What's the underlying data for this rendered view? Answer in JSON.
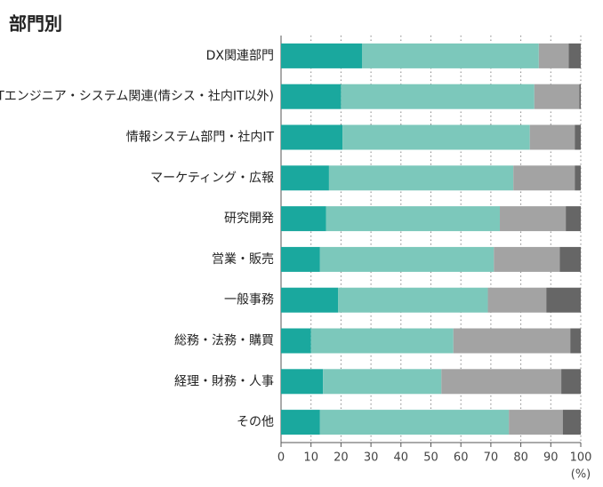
{
  "chart_data": {
    "type": "stacked-barh",
    "title": "部門別",
    "categories": [
      "DX関連部門",
      "ITエンジニア・システム関連(情シス・社内IT以外)",
      "情報システム部門・社内IT",
      "マーケティング・広報",
      "研究開発",
      "営業・販売",
      "一般事務",
      "総務・法務・購買",
      "経理・財務・人事",
      "その他"
    ],
    "series": [
      {
        "color": "#1aa89e",
        "values": [
          27,
          20,
          20.5,
          16,
          15,
          13,
          19,
          10,
          14,
          13
        ]
      },
      {
        "color": "#7cc8bb",
        "values": [
          59,
          64.5,
          62.5,
          61.5,
          58,
          58,
          50,
          47.5,
          39.5,
          63
        ]
      },
      {
        "color": "#a3a3a3",
        "values": [
          10,
          15,
          15,
          20.5,
          22,
          22,
          19.5,
          39,
          40,
          18
        ]
      },
      {
        "color": "#666666",
        "values": [
          4,
          0.5,
          2,
          2,
          5,
          7,
          11.5,
          3.5,
          6.5,
          6
        ]
      }
    ],
    "xlim": [
      0,
      100
    ],
    "xticks": [
      0,
      10,
      20,
      30,
      40,
      50,
      60,
      70,
      80,
      90,
      100
    ],
    "xlabel": "(%)",
    "grid": true
  }
}
